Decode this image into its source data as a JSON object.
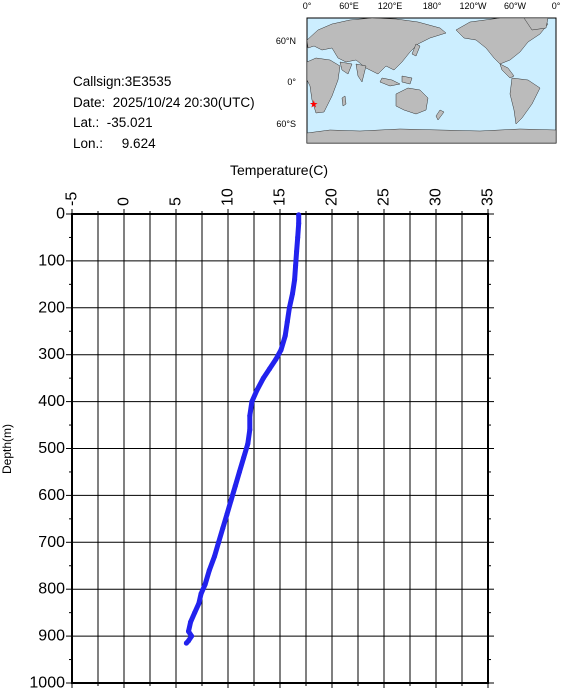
{
  "station": {
    "callsign_label": "Callsign:",
    "callsign": "3E3535",
    "date_label": "Date:",
    "date": "2025/10/24 20:30(UTC)",
    "lat_label": "Lat.:",
    "lat": "-35.021",
    "lon_label": "Lon.:",
    "lon": "9.624"
  },
  "map": {
    "top_labels": [
      "0°",
      "60°E",
      "120°E",
      "180°",
      "120°W",
      "60°W",
      "0°"
    ],
    "lat_labels": [
      "60°N",
      "0°",
      "60°S"
    ],
    "marker": {
      "lon": 9.624,
      "lat": -35.021,
      "symbol": "★",
      "color": "#ff0000"
    },
    "ocean_color": "#cceeff",
    "land_color": "#bbbbbb"
  },
  "chart_data": {
    "type": "line",
    "title": "",
    "xlabel": "Temperature(C)",
    "ylabel": "Depth(m)",
    "xlim": [
      -5,
      35
    ],
    "ylim": [
      1000,
      0
    ],
    "x_ticks": [
      -5,
      0,
      5,
      10,
      15,
      20,
      25,
      30,
      35
    ],
    "y_ticks": [
      0,
      100,
      200,
      300,
      400,
      500,
      600,
      700,
      800,
      900,
      1000
    ],
    "grid": true,
    "line_color": "#2222ee",
    "series": [
      {
        "name": "",
        "points": [
          [
            16.8,
            2
          ],
          [
            16.8,
            20
          ],
          [
            16.7,
            50
          ],
          [
            16.6,
            80
          ],
          [
            16.5,
            110
          ],
          [
            16.4,
            140
          ],
          [
            16.2,
            170
          ],
          [
            15.9,
            200
          ],
          [
            15.7,
            230
          ],
          [
            15.5,
            260
          ],
          [
            15.1,
            290
          ],
          [
            14.6,
            310
          ],
          [
            14.0,
            330
          ],
          [
            13.4,
            350
          ],
          [
            12.8,
            375
          ],
          [
            12.3,
            400
          ],
          [
            12.1,
            430
          ],
          [
            12.1,
            460
          ],
          [
            11.9,
            490
          ],
          [
            11.5,
            520
          ],
          [
            11.1,
            550
          ],
          [
            10.7,
            580
          ],
          [
            10.3,
            610
          ],
          [
            9.9,
            640
          ],
          [
            9.5,
            670
          ],
          [
            9.1,
            700
          ],
          [
            8.7,
            730
          ],
          [
            8.2,
            760
          ],
          [
            7.8,
            790
          ],
          [
            7.4,
            810
          ],
          [
            7.2,
            830
          ],
          [
            6.8,
            850
          ],
          [
            6.4,
            870
          ],
          [
            6.2,
            890
          ],
          [
            6.5,
            900
          ],
          [
            6.2,
            910
          ],
          [
            6.0,
            915
          ]
        ]
      }
    ]
  }
}
